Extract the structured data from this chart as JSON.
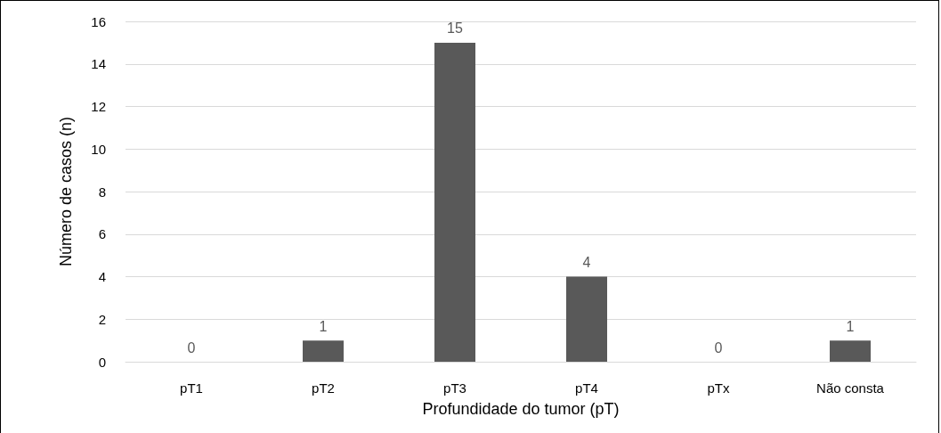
{
  "chart_data": {
    "type": "bar",
    "xlabel": "Profundidade do tumor (pT)",
    "ylabel": "Número de casos (n)",
    "categories": [
      "pT1",
      "pT2",
      "pT3",
      "pT4",
      "pTx",
      "Não consta"
    ],
    "values": [
      0,
      1,
      15,
      4,
      0,
      1
    ],
    "color": "#595959",
    "ylim": [
      0,
      16
    ],
    "yticks": [
      0,
      2,
      4,
      6,
      8,
      10,
      12,
      14,
      16
    ],
    "grid": "y",
    "data_labels": true
  }
}
